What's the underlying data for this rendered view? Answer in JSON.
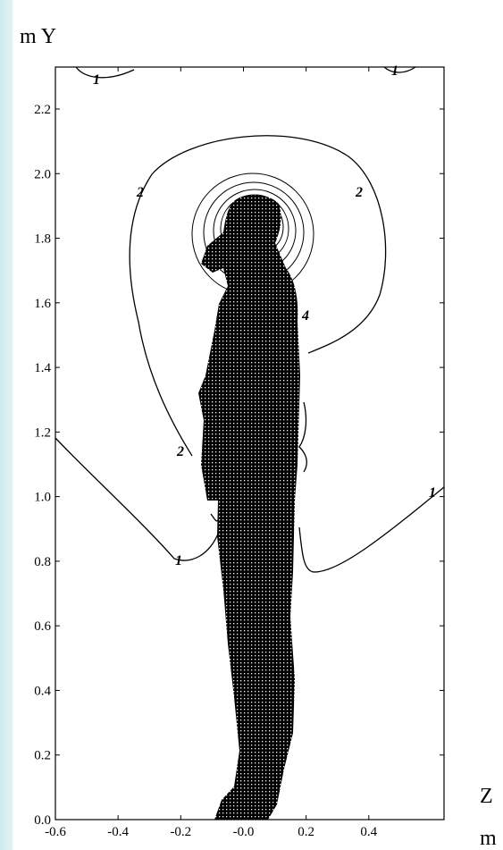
{
  "chart_data": {
    "type": "contour",
    "y_label": "m  Y",
    "x_label_top": "Z",
    "x_label_bottom": "m",
    "xlim": [
      -0.6,
      0.64
    ],
    "ylim": [
      0,
      2.33
    ],
    "xticks": [
      {
        "value": -0.6,
        "label": "-0.6"
      },
      {
        "value": -0.4,
        "label": "-0.4"
      },
      {
        "value": -0.2,
        "label": "-0.2"
      },
      {
        "value": 0,
        "label": "-0.0"
      },
      0.2,
      0.4
    ],
    "yticks": [
      {
        "value": 0,
        "label": "0.0"
      },
      0.2,
      0.4,
      0.6,
      0.8,
      {
        "value": 1,
        "label": "1.0"
      },
      1.2,
      1.4,
      1.6,
      1.8,
      {
        "value": 2,
        "label": "2.0"
      },
      2.2
    ],
    "contour_levels": [
      1,
      1,
      2,
      2,
      2,
      4,
      1,
      1
    ],
    "color": "#000000",
    "grid": false
  }
}
